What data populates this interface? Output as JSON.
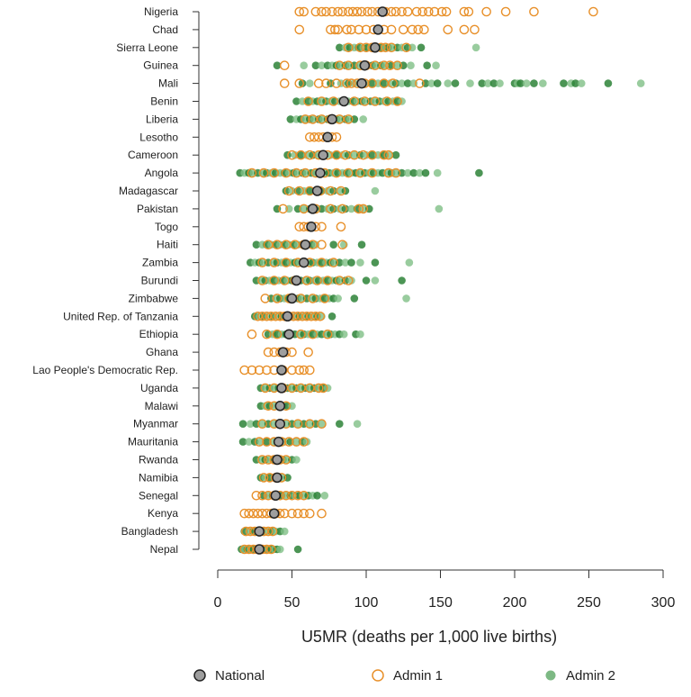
{
  "chart_data": {
    "type": "scatter",
    "title": "",
    "xlabel": "U5MR (deaths per 1,000 live births)",
    "ylabel": "",
    "xlim": [
      0,
      300
    ],
    "xticks": [
      0,
      50,
      100,
      150,
      200,
      250,
      300
    ],
    "grid": false,
    "legend": {
      "placement": "bottom",
      "entries": [
        {
          "key": "national",
          "label": "National",
          "color": "#9e9e9e",
          "edge": "#222222"
        },
        {
          "key": "admin1",
          "label": "Admin 1",
          "color": "#e8902a"
        },
        {
          "key": "admin2",
          "label": "Admin 2",
          "color": "#5da865"
        }
      ]
    },
    "colors": {
      "admin1": "#e8902a",
      "admin2_light": "#7fbf86",
      "admin2_dark": "#1f7a2a",
      "national": "#9e9e9e"
    },
    "categories": [
      {
        "name": "Nigeria",
        "national": 111,
        "admin1": [
          55,
          58,
          66,
          70,
          73,
          77,
          81,
          84,
          88,
          91,
          94,
          97,
          101,
          104,
          108,
          113,
          117,
          120,
          124,
          128,
          134,
          138,
          142,
          146,
          151,
          154,
          166,
          169,
          181,
          194,
          213,
          253
        ],
        "admin2": []
      },
      {
        "name": "Chad",
        "national": 108,
        "admin1": [
          55,
          76,
          79,
          81,
          87,
          90,
          95,
          100,
          105,
          112,
          117,
          125,
          131,
          135,
          139,
          155,
          166,
          173
        ],
        "admin2": []
      },
      {
        "name": "Sierra Leone",
        "national": 106,
        "admin1": [
          88,
          96,
          100,
          104,
          110,
          113,
          117,
          127
        ],
        "admin2": [
          82,
          86,
          89,
          92,
          95,
          98,
          101,
          103,
          105,
          107,
          110,
          112,
          115,
          118,
          121,
          124,
          128,
          131,
          137,
          174
        ]
      },
      {
        "name": "Guinea",
        "national": 99,
        "admin1": [
          45,
          82,
          88,
          96,
          100,
          106,
          112,
          116,
          121
        ],
        "admin2": [
          40,
          58,
          66,
          70,
          74,
          77,
          80,
          83,
          86,
          89,
          92,
          95,
          98,
          101,
          104,
          107,
          110,
          113,
          117,
          121,
          125,
          130,
          141,
          147
        ]
      },
      {
        "name": "Mali",
        "national": 97,
        "admin1": [
          45,
          55,
          68,
          73,
          80,
          87,
          90,
          94,
          99,
          104,
          112,
          118,
          136
        ],
        "admin2": [
          57,
          62,
          76,
          83,
          88,
          92,
          96,
          100,
          104,
          108,
          112,
          116,
          120,
          124,
          128,
          132,
          140,
          144,
          148,
          155,
          160,
          170,
          178,
          182,
          186,
          190,
          200,
          202,
          204,
          208,
          213,
          219,
          233,
          238,
          241,
          245,
          263,
          285
        ]
      },
      {
        "name": "Benin",
        "national": 85,
        "admin1": [
          61,
          70,
          78,
          85,
          92,
          99,
          106,
          114,
          121
        ],
        "admin2": [
          53,
          57,
          61,
          64,
          67,
          70,
          73,
          76,
          79,
          82,
          85,
          88,
          91,
          94,
          97,
          100,
          103,
          106,
          109,
          112,
          115,
          118,
          121,
          124
        ]
      },
      {
        "name": "Liberia",
        "national": 77,
        "admin1": [
          59,
          64,
          70,
          76,
          82,
          88
        ],
        "admin2": [
          49,
          53,
          56,
          59,
          62,
          65,
          68,
          71,
          74,
          77,
          80,
          83,
          86,
          89,
          92,
          98
        ]
      },
      {
        "name": "Lesotho",
        "national": 74,
        "admin1": [
          62,
          65,
          68,
          71,
          74,
          77,
          80
        ],
        "admin2": []
      },
      {
        "name": "Cameroon",
        "national": 71,
        "admin1": [
          50,
          56,
          62,
          68,
          74,
          80,
          86,
          92,
          98,
          104,
          112,
          115
        ],
        "admin2": [
          47,
          52,
          56,
          60,
          64,
          68,
          72,
          76,
          80,
          84,
          88,
          92,
          96,
          100,
          104,
          108,
          112,
          116,
          120
        ]
      },
      {
        "name": "Angola",
        "national": 69,
        "admin1": [
          23,
          31,
          38,
          46,
          53,
          59,
          66,
          72,
          80,
          88,
          96,
          104,
          115,
          120
        ],
        "admin2": [
          15,
          18,
          21,
          24,
          27,
          30,
          33,
          36,
          39,
          42,
          45,
          48,
          51,
          54,
          57,
          60,
          63,
          66,
          69,
          72,
          75,
          78,
          81,
          84,
          87,
          90,
          93,
          96,
          99,
          102,
          105,
          108,
          111,
          114,
          117,
          120,
          124,
          128,
          132,
          136,
          140,
          148,
          176
        ]
      },
      {
        "name": "Madagascar",
        "national": 67,
        "admin1": [
          48,
          55,
          62,
          69,
          76,
          83
        ],
        "admin2": [
          46,
          50,
          54,
          58,
          62,
          66,
          70,
          74,
          78,
          82,
          86,
          106
        ]
      },
      {
        "name": "Pakistan",
        "national": 64,
        "admin1": [
          44,
          58,
          66,
          76,
          84,
          95,
          98
        ],
        "admin2": [
          40,
          48,
          54,
          58,
          62,
          66,
          70,
          74,
          78,
          82,
          86,
          90,
          94,
          98,
          102,
          149
        ]
      },
      {
        "name": "Togo",
        "national": 63,
        "admin1": [
          55,
          58,
          61,
          66,
          70,
          83
        ],
        "admin2": []
      },
      {
        "name": "Haiti",
        "national": 59,
        "admin1": [
          34,
          40,
          46,
          52,
          58,
          64,
          70,
          84
        ],
        "admin2": [
          26,
          30,
          33,
          36,
          39,
          42,
          45,
          48,
          51,
          54,
          57,
          60,
          63,
          66,
          78,
          85,
          97
        ]
      },
      {
        "name": "Zambia",
        "national": 58,
        "admin1": [
          30,
          38,
          46,
          54,
          62,
          70,
          78
        ],
        "admin2": [
          22,
          25,
          28,
          31,
          34,
          37,
          40,
          43,
          46,
          49,
          52,
          55,
          58,
          61,
          64,
          67,
          70,
          73,
          76,
          79,
          82,
          86,
          90,
          96,
          106,
          129
        ]
      },
      {
        "name": "Burundi",
        "national": 53,
        "admin1": [
          30,
          38,
          45,
          52,
          60,
          67,
          74,
          82,
          88
        ],
        "admin2": [
          26,
          29,
          32,
          35,
          38,
          41,
          44,
          47,
          50,
          53,
          56,
          59,
          62,
          65,
          68,
          71,
          74,
          77,
          80,
          83,
          86,
          90,
          100,
          106,
          124
        ]
      },
      {
        "name": "Zimbabwe",
        "national": 50,
        "admin1": [
          32,
          40,
          48,
          56,
          64,
          72
        ],
        "admin2": [
          36,
          39,
          42,
          45,
          48,
          51,
          54,
          57,
          60,
          63,
          66,
          69,
          72,
          75,
          78,
          81,
          92,
          127
        ]
      },
      {
        "name": "United Rep. of Tanzania",
        "national": 47,
        "admin1": [
          27,
          30,
          33,
          36,
          39,
          42,
          45,
          48,
          51,
          54,
          57,
          60,
          63,
          66,
          69
        ],
        "admin2": [
          25,
          28,
          31,
          34,
          37,
          40,
          43,
          46,
          49,
          52,
          55,
          58,
          61,
          64,
          67,
          70,
          77
        ]
      },
      {
        "name": "Ethiopia",
        "national": 48,
        "admin1": [
          23,
          33,
          40,
          48,
          56,
          64,
          74
        ],
        "admin2": [
          34,
          37,
          40,
          43,
          46,
          49,
          52,
          55,
          58,
          61,
          64,
          67,
          70,
          73,
          76,
          79,
          82,
          85,
          93,
          96
        ]
      },
      {
        "name": "Ghana",
        "national": 44,
        "admin1": [
          34,
          38,
          42,
          46,
          50,
          61
        ],
        "admin2": []
      },
      {
        "name": "Lao People's Democratic Rep.",
        "national": 43,
        "admin1": [
          18,
          23,
          28,
          33,
          38,
          44,
          50,
          55,
          58,
          62
        ],
        "admin2": []
      },
      {
        "name": "Uganda",
        "national": 43,
        "admin1": [
          32,
          38,
          44,
          50,
          56,
          62,
          68,
          71
        ],
        "admin2": [
          29,
          32,
          35,
          38,
          41,
          44,
          47,
          50,
          53,
          56,
          59,
          62,
          65,
          68,
          71,
          74
        ]
      },
      {
        "name": "Malawi",
        "national": 42,
        "admin1": [
          34,
          38,
          42,
          46
        ],
        "admin2": [
          29,
          32,
          35,
          38,
          41,
          44,
          47,
          50
        ]
      },
      {
        "name": "Myanmar",
        "national": 42,
        "admin1": [
          30,
          38,
          46,
          54,
          62,
          70
        ],
        "admin2": [
          17,
          22,
          26,
          30,
          34,
          38,
          42,
          46,
          50,
          54,
          58,
          62,
          66,
          70,
          82,
          94
        ]
      },
      {
        "name": "Mauritania",
        "national": 41,
        "admin1": [
          28,
          33,
          38,
          43,
          48,
          53,
          58
        ],
        "admin2": [
          17,
          21,
          25,
          29,
          33,
          37,
          41,
          45,
          49,
          53,
          57,
          60
        ]
      },
      {
        "name": "Rwanda",
        "national": 40,
        "admin1": [
          30,
          34,
          38,
          42,
          46
        ],
        "admin2": [
          26,
          29,
          32,
          35,
          38,
          41,
          44,
          47,
          50,
          53
        ]
      },
      {
        "name": "Namibia",
        "national": 40,
        "admin1": [
          31,
          35,
          39,
          43
        ],
        "admin2": [
          29,
          32,
          35,
          38,
          41,
          44,
          47
        ]
      },
      {
        "name": "Senegal",
        "national": 39,
        "admin1": [
          26,
          30,
          34,
          38,
          42,
          46,
          50,
          54,
          58
        ],
        "admin2": [
          31,
          34,
          37,
          40,
          43,
          46,
          49,
          52,
          55,
          58,
          61,
          64,
          67,
          72
        ]
      },
      {
        "name": "Kenya",
        "national": 38,
        "admin1": [
          18,
          21,
          24,
          27,
          30,
          33,
          36,
          39,
          42,
          45,
          50,
          54,
          58,
          62,
          70
        ],
        "admin2": []
      },
      {
        "name": "Bangladesh",
        "national": 28,
        "admin1": [
          19,
          22,
          25,
          28,
          31,
          34,
          37
        ],
        "admin2": [
          18,
          21,
          24,
          27,
          30,
          33,
          36,
          39,
          42,
          45
        ]
      },
      {
        "name": "Nepal",
        "national": 28,
        "admin1": [
          18,
          21,
          24,
          27,
          30,
          33,
          36
        ],
        "admin2": [
          16,
          18,
          20,
          22,
          24,
          26,
          28,
          30,
          32,
          34,
          36,
          38,
          40,
          42,
          54
        ]
      }
    ]
  }
}
